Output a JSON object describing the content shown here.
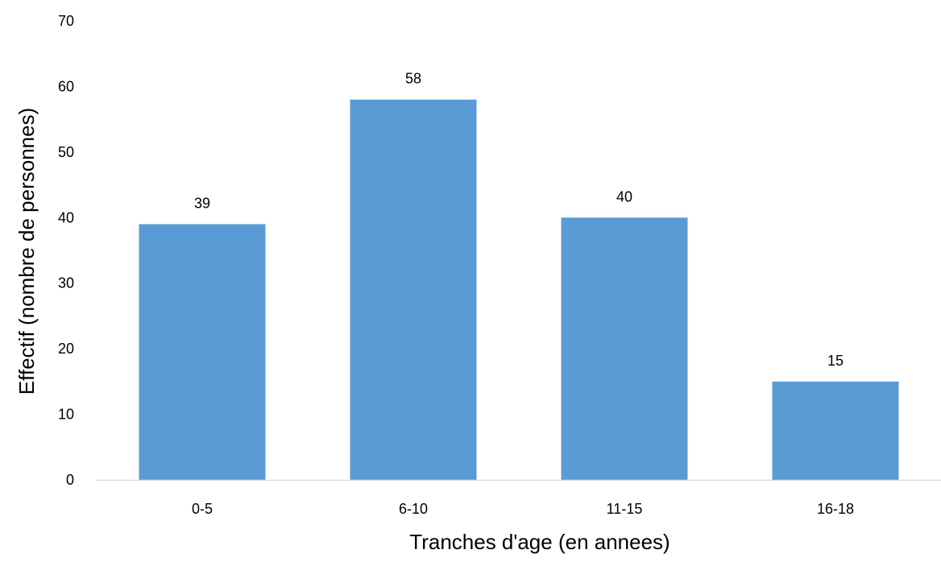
{
  "chart_data": {
    "type": "bar",
    "title": "",
    "xlabel": "Tranches d'age (en annees)",
    "ylabel": "Effectif (nombre de personnes)",
    "categories": [
      "0-5",
      "6-10",
      "11-15",
      "16-18"
    ],
    "values": [
      39,
      58,
      40,
      15
    ],
    "data_labels": [
      "39",
      "58",
      "40",
      "15"
    ],
    "ylim": [
      0,
      70
    ],
    "yticks": [
      0,
      10,
      20,
      30,
      40,
      50,
      60,
      70
    ],
    "ytick_labels": [
      "0",
      "10",
      "20",
      "30",
      "40",
      "50",
      "60",
      "70"
    ],
    "grid": false,
    "legend": "none",
    "colors": {
      "bar": "#5B9BD5",
      "axis": "#D9D9D9",
      "text": "#000000"
    }
  }
}
